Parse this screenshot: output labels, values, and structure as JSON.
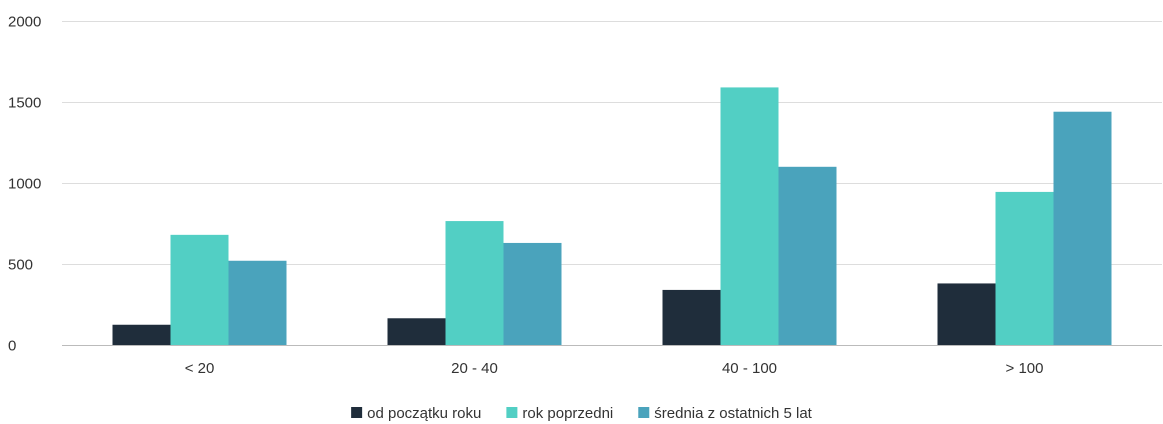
{
  "chart_data": {
    "type": "bar",
    "categories": [
      "< 20",
      "20 - 40",
      "40 - 100",
      "> 100"
    ],
    "series": [
      {
        "name": "od początku roku",
        "values": [
          125,
          165,
          340,
          380
        ],
        "color": "#1f2d3b"
      },
      {
        "name": "rok poprzedni",
        "values": [
          680,
          765,
          1590,
          945
        ],
        "color": "#52cfc4"
      },
      {
        "name": "średnia z ostatnich 5 lat",
        "values": [
          520,
          630,
          1100,
          1440
        ],
        "color": "#4aa3bc"
      }
    ],
    "yticks": [
      "0",
      "500",
      "1000",
      "1500",
      "2000"
    ],
    "ylim": [
      0,
      2000
    ],
    "grid": true,
    "legend": "bottom-center"
  }
}
